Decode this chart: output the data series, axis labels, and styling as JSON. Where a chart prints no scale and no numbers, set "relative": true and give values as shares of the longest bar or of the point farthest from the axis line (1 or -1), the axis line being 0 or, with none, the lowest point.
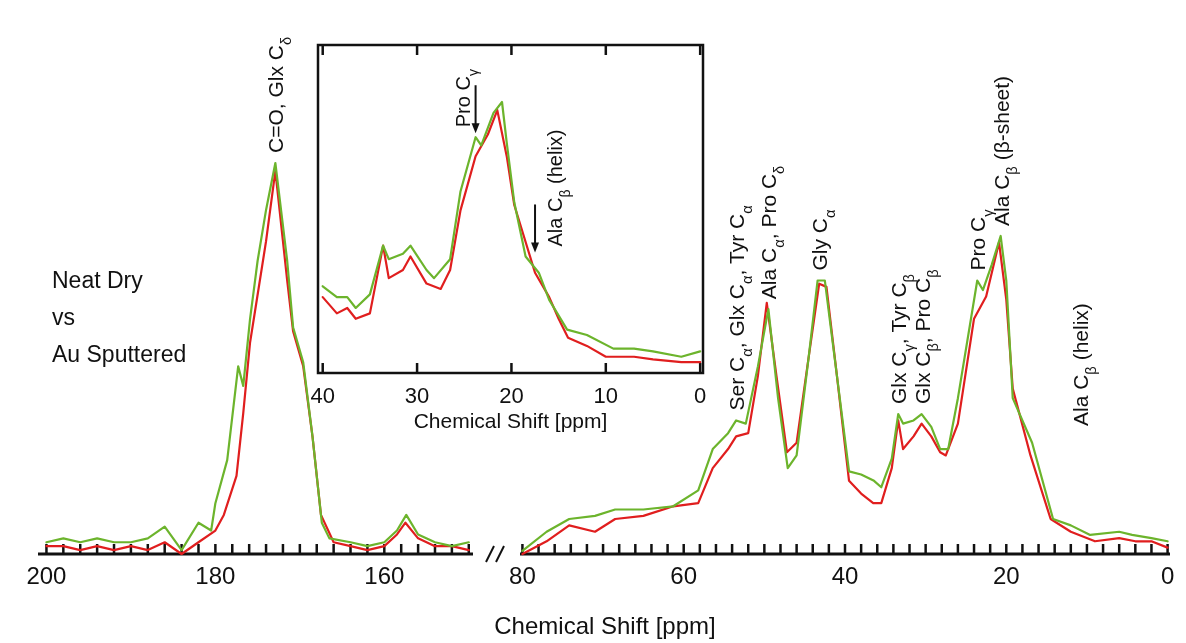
{
  "chart_data": [
    {
      "type": "line",
      "relative": true,
      "xlim": [
        201,
        149.5
      ],
      "xticks": [
        {
          "value": 200,
          "label": "200"
        },
        {
          "value": 198,
          "label": null
        },
        {
          "value": 196,
          "label": null
        },
        {
          "value": 194,
          "label": null
        },
        {
          "value": 192,
          "label": null
        },
        {
          "value": 190,
          "label": null
        },
        {
          "value": 188,
          "label": null
        },
        {
          "value": 186,
          "label": null
        },
        {
          "value": 184,
          "label": null
        },
        {
          "value": 182,
          "label": null
        },
        {
          "value": 180,
          "label": "180"
        },
        {
          "value": 178,
          "label": null
        },
        {
          "value": 176,
          "label": null
        },
        {
          "value": 174,
          "label": null
        },
        {
          "value": 172,
          "label": null
        },
        {
          "value": 170,
          "label": null
        },
        {
          "value": 168,
          "label": null
        },
        {
          "value": 166,
          "label": null
        },
        {
          "value": 164,
          "label": null
        },
        {
          "value": 162,
          "label": null
        },
        {
          "value": 160,
          "label": "160"
        },
        {
          "value": 158,
          "label": null
        },
        {
          "value": 156,
          "label": null
        },
        {
          "value": 154,
          "label": null
        },
        {
          "value": 152,
          "label": null
        },
        {
          "value": 150,
          "label": null
        }
      ],
      "series": [
        {
          "color": "#e01e1e",
          "x": [
            200,
            198,
            196,
            194,
            192,
            190,
            188,
            186,
            184,
            182,
            180,
            179,
            177.5,
            176.7,
            175.9,
            174,
            172.9,
            171.5,
            170.8,
            169.6,
            168.5,
            167.5,
            166,
            164,
            162,
            160,
            158.5,
            157.5,
            156,
            154,
            152,
            150
          ],
          "values": [
            0.02,
            0.02,
            0.01,
            0.02,
            0.01,
            0.02,
            0.01,
            0.03,
            0.0,
            0.03,
            0.06,
            0.1,
            0.2,
            0.36,
            0.54,
            0.8,
            0.98,
            0.7,
            0.57,
            0.48,
            0.3,
            0.1,
            0.03,
            0.02,
            0.01,
            0.02,
            0.05,
            0.08,
            0.04,
            0.02,
            0.02,
            0.01
          ]
        },
        {
          "color": "#6cb42c",
          "x": [
            200,
            198,
            196,
            194,
            192,
            190,
            188,
            186,
            184,
            182,
            180.5,
            180,
            178.6,
            177.3,
            176.7,
            175.9,
            175,
            174,
            172.9,
            171.5,
            170.8,
            169.6,
            168.5,
            167.4,
            166.5,
            164,
            162,
            160,
            158.5,
            157.4,
            156,
            154,
            152,
            150
          ],
          "values": [
            0.03,
            0.04,
            0.03,
            0.04,
            0.03,
            0.03,
            0.04,
            0.07,
            0.01,
            0.08,
            0.06,
            0.13,
            0.24,
            0.48,
            0.43,
            0.6,
            0.75,
            0.88,
            1.0,
            0.75,
            0.58,
            0.49,
            0.3,
            0.08,
            0.04,
            0.03,
            0.02,
            0.03,
            0.06,
            0.1,
            0.05,
            0.03,
            0.02,
            0.03
          ]
        }
      ],
      "annotations": [
        {
          "text": "C=O, Glx C$_{δ}$",
          "x": 172.9,
          "y": 1.0
        },
        "Neat Dry\nvs\nAu Sputtered"
      ]
    },
    {
      "type": "line",
      "relative": true,
      "xlabel": "Chemical Shift [ppm]",
      "xlim": [
        80.3,
        -0.3
      ],
      "xticks": [
        {
          "value": 80,
          "label": "80"
        },
        {
          "value": 78,
          "label": null
        },
        {
          "value": 76,
          "label": null
        },
        {
          "value": 74,
          "label": null
        },
        {
          "value": 72,
          "label": null
        },
        {
          "value": 70,
          "label": null
        },
        {
          "value": 68,
          "label": null
        },
        {
          "value": 66,
          "label": null
        },
        {
          "value": 64,
          "label": null
        },
        {
          "value": 62,
          "label": null
        },
        {
          "value": 60,
          "label": "60"
        },
        {
          "value": 58,
          "label": null
        },
        {
          "value": 56,
          "label": null
        },
        {
          "value": 54,
          "label": null
        },
        {
          "value": 52,
          "label": null
        },
        {
          "value": 50,
          "label": null
        },
        {
          "value": 48,
          "label": null
        },
        {
          "value": 46,
          "label": null
        },
        {
          "value": 44,
          "label": null
        },
        {
          "value": 42,
          "label": null
        },
        {
          "value": 40,
          "label": "40"
        },
        {
          "value": 38,
          "label": null
        },
        {
          "value": 36,
          "label": null
        },
        {
          "value": 34,
          "label": null
        },
        {
          "value": 32,
          "label": null
        },
        {
          "value": 30,
          "label": null
        },
        {
          "value": 28,
          "label": null
        },
        {
          "value": 26,
          "label": null
        },
        {
          "value": 24,
          "label": null
        },
        {
          "value": 22,
          "label": null
        },
        {
          "value": 20,
          "label": "20"
        },
        {
          "value": 18,
          "label": null
        },
        {
          "value": 16,
          "label": null
        },
        {
          "value": 14,
          "label": null
        },
        {
          "value": 12,
          "label": null
        },
        {
          "value": 10,
          "label": null
        },
        {
          "value": 8,
          "label": null
        },
        {
          "value": 6,
          "label": null
        },
        {
          "value": 4,
          "label": null
        },
        {
          "value": 2,
          "label": null
        },
        {
          "value": 0,
          "label": "0"
        }
      ],
      "series": [
        {
          "color": "#e01e1e",
          "x": [
            80,
            77,
            74.2,
            71,
            68.5,
            65,
            61.3,
            58.2,
            56.4,
            54.5,
            53.5,
            52,
            50.8,
            49.7,
            48.5,
            47.2,
            46,
            44.5,
            43.2,
            42.3,
            41,
            39.5,
            38,
            36.5,
            35.5,
            34.2,
            33.4,
            32.8,
            31.5,
            30.5,
            29.3,
            28.2,
            27.5,
            26,
            24,
            22.5,
            20.9,
            20,
            19.2,
            17,
            14.5,
            12,
            9,
            6,
            4,
            2,
            0
          ],
          "values": [
            0.0,
            0.04,
            0.09,
            0.07,
            0.11,
            0.12,
            0.15,
            0.16,
            0.27,
            0.33,
            0.37,
            0.38,
            0.56,
            0.79,
            0.56,
            0.32,
            0.35,
            0.62,
            0.85,
            0.84,
            0.56,
            0.23,
            0.19,
            0.16,
            0.16,
            0.27,
            0.42,
            0.33,
            0.37,
            0.41,
            0.37,
            0.32,
            0.31,
            0.41,
            0.74,
            0.81,
            0.98,
            0.8,
            0.52,
            0.31,
            0.11,
            0.07,
            0.04,
            0.05,
            0.04,
            0.04,
            0.02
          ]
        },
        {
          "color": "#6cb42c",
          "x": [
            80,
            77,
            74.2,
            71,
            68.5,
            65,
            61.3,
            58.2,
            56.4,
            54.5,
            53.5,
            52.3,
            50.8,
            49.5,
            48.3,
            47.1,
            46,
            44.5,
            43.4,
            42.5,
            41,
            39.5,
            38,
            36.4,
            35.5,
            34.2,
            33.4,
            32.8,
            31.5,
            30.5,
            29.3,
            28.2,
            27.2,
            26,
            23.6,
            22.9,
            21.8,
            20.7,
            20,
            19.2,
            16.8,
            14.2,
            12,
            9.6,
            6,
            4.4,
            2,
            0
          ],
          "values": [
            0.01,
            0.07,
            0.11,
            0.12,
            0.14,
            0.14,
            0.15,
            0.2,
            0.33,
            0.38,
            0.42,
            0.41,
            0.59,
            0.77,
            0.49,
            0.27,
            0.31,
            0.62,
            0.86,
            0.86,
            0.56,
            0.26,
            0.25,
            0.23,
            0.21,
            0.3,
            0.44,
            0.41,
            0.42,
            0.44,
            0.4,
            0.33,
            0.33,
            0.49,
            0.86,
            0.83,
            0.91,
            1.0,
            0.86,
            0.49,
            0.35,
            0.11,
            0.09,
            0.06,
            0.07,
            0.06,
            0.05,
            0.04
          ]
        }
      ],
      "annotations": [
        {
          "text": "Ser C$_{α}$, Glx C$_{α}$, Tyr C$_{α}$",
          "x": 53.5,
          "y": 0.42
        },
        {
          "text": "Ala C$_{α}$, Pro C$_{δ}$",
          "x": 49.5,
          "y": 0.77
        },
        {
          "text": "Gly C$_{α}$",
          "x": 43.2,
          "y": 0.86
        },
        {
          "text": "Glx C$_{γ}$, Tyr C$_{β}$",
          "x": 33.4,
          "y": 0.44
        },
        {
          "text": "Glx C$_{β}$, Pro C$_{β}$",
          "x": 30.5,
          "y": 0.44
        },
        {
          "text": "Pro C$_{γ}$",
          "x": 23.6,
          "y": 0.86
        },
        {
          "text": "Ala C$_{β}$  (β-sheet)",
          "x": 20.7,
          "y": 1.0
        },
        "Ala C$_{β}$  (helix)"
      ]
    },
    {
      "type": "line",
      "relative": true,
      "xlabel": "Chemical Shift [ppm]",
      "xlim": [
        40.5,
        -0.3
      ],
      "xticks": [
        40,
        30,
        20,
        10,
        0
      ],
      "series": [
        {
          "color": "#e01e1e",
          "x": [
            40,
            38.5,
            37.4,
            36.5,
            35,
            33.6,
            33,
            31.5,
            30.7,
            29,
            27.5,
            26.5,
            25.4,
            23.8,
            22.5,
            21.5,
            20.5,
            19.7,
            17.5,
            16,
            15,
            14,
            12,
            10,
            7,
            5,
            2,
            0
          ],
          "values": [
            0.28,
            0.22,
            0.24,
            0.2,
            0.22,
            0.47,
            0.35,
            0.38,
            0.43,
            0.33,
            0.31,
            0.38,
            0.6,
            0.8,
            0.88,
            0.97,
            0.8,
            0.62,
            0.37,
            0.28,
            0.2,
            0.13,
            0.1,
            0.06,
            0.06,
            0.05,
            0.04,
            0.04
          ]
        },
        {
          "color": "#6cb42c",
          "x": [
            40,
            38.5,
            37.4,
            36.5,
            35,
            33.6,
            33,
            31.5,
            30.7,
            29,
            28.2,
            26.5,
            25.4,
            23.8,
            23.2,
            21.9,
            21,
            20.5,
            19.7,
            18.5,
            17.1,
            16,
            14.1,
            12,
            9.2,
            7,
            5,
            2,
            0
          ],
          "values": [
            0.32,
            0.28,
            0.28,
            0.24,
            0.29,
            0.47,
            0.42,
            0.44,
            0.47,
            0.38,
            0.35,
            0.42,
            0.67,
            0.87,
            0.84,
            0.96,
            1.0,
            0.85,
            0.63,
            0.43,
            0.37,
            0.27,
            0.16,
            0.14,
            0.09,
            0.09,
            0.08,
            0.06,
            0.08
          ]
        }
      ],
      "annotations": [
        {
          "text": "Pro C$_{γ}$",
          "x": 23.8,
          "y": 0.87
        },
        {
          "text": "Ala C$_{β}$ (helix)",
          "x": 17.5,
          "y": 0.43
        }
      ]
    }
  ]
}
